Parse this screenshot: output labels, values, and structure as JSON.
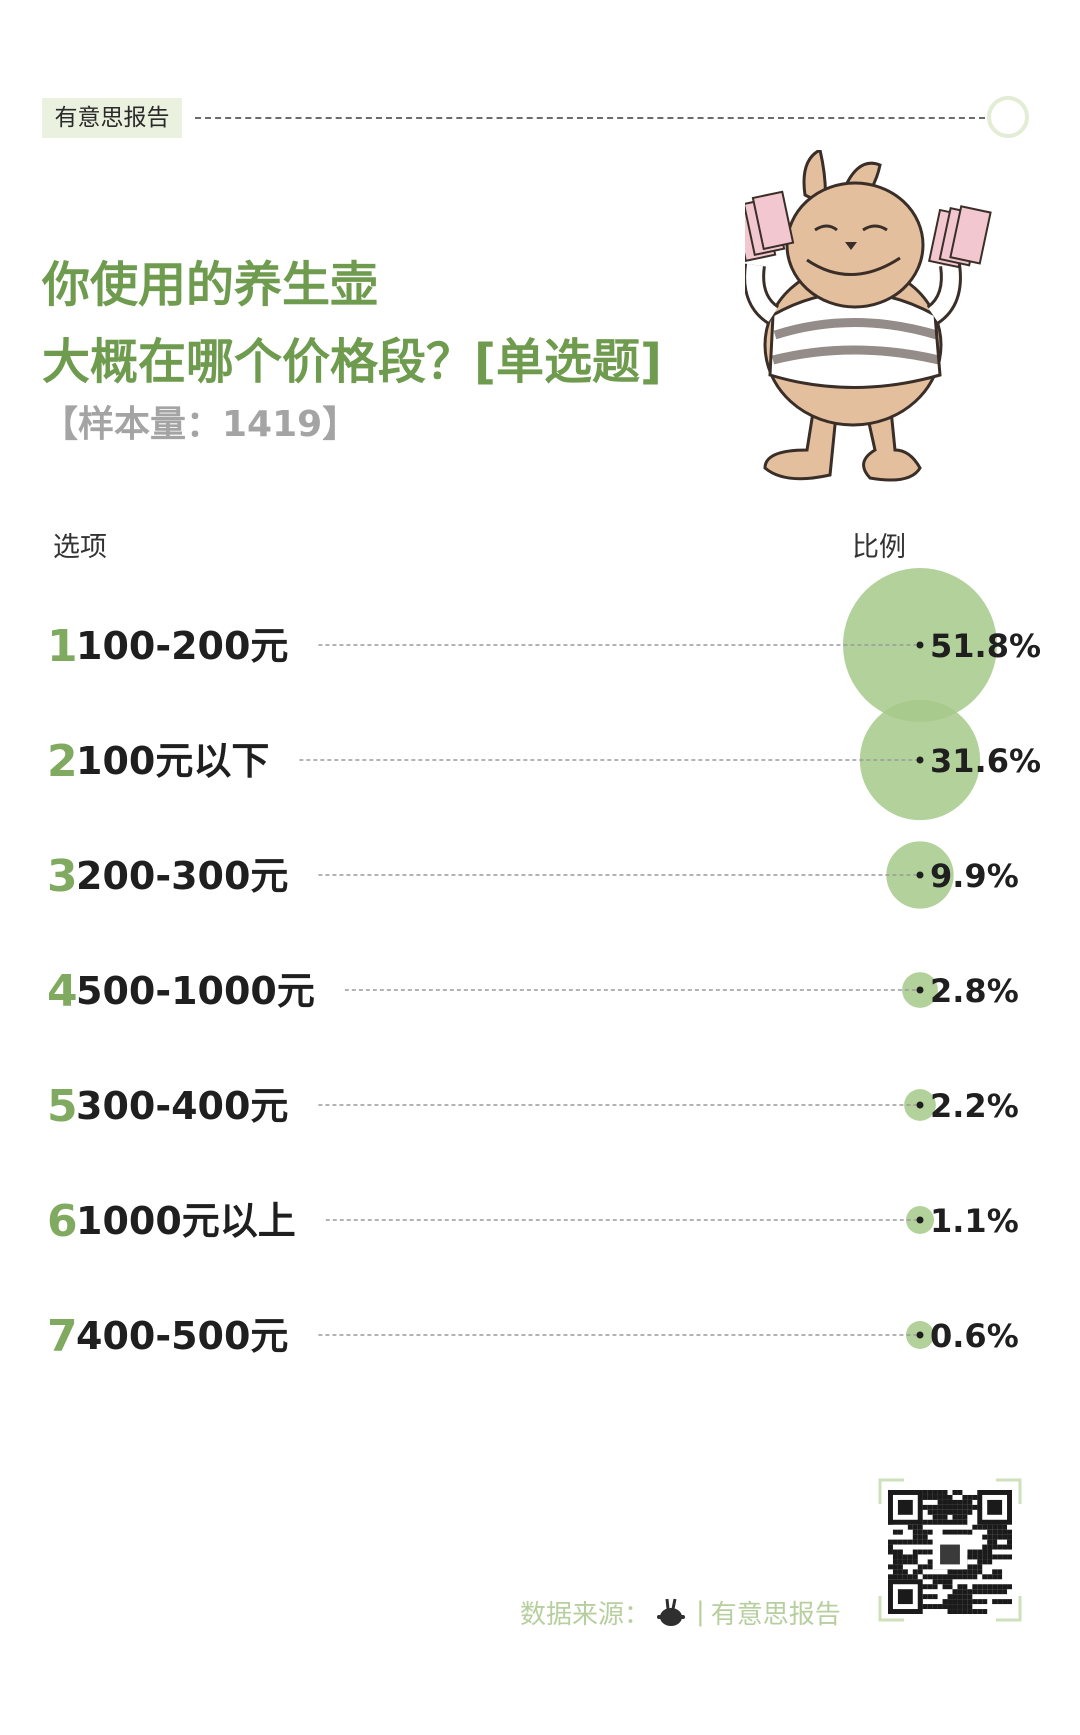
{
  "header": {
    "brand": "有意思报告"
  },
  "title": {
    "line1": "你使用的养生壶",
    "line2": "大概在哪个价格段？[单选题]"
  },
  "sample": "【样本量：1419】",
  "columns": {
    "option": "选项",
    "ratio": "比例"
  },
  "colors": {
    "accent": "#7faa5f",
    "bubble": "#a6c98a",
    "title": "#6f9b4f"
  },
  "chart_data": {
    "type": "bubble",
    "title": "你使用的养生壶 大概在哪个价格段？[单选题]",
    "categories": [
      "100-200元",
      "100元以下",
      "200-300元",
      "500-1000元",
      "300-400元",
      "1000元以上",
      "400-500元"
    ],
    "ranks": [
      "1",
      "2",
      "3",
      "4",
      "5",
      "6",
      "7"
    ],
    "values": [
      51.8,
      31.6,
      9.9,
      2.8,
      2.2,
      1.1,
      0.6
    ],
    "labels": [
      "51.8%",
      "31.6%",
      "9.9%",
      "2.8%",
      "2.2%",
      "1.1%",
      "0.6%"
    ],
    "unit": "%"
  },
  "footer": {
    "source_label": "数据来源：",
    "separator": "|",
    "source_name": "有意思报告"
  },
  "icons": {
    "mascot": "rabbit-mascot-icon",
    "qr": "qr-code-icon",
    "logo": "rabbit-logo-icon"
  }
}
